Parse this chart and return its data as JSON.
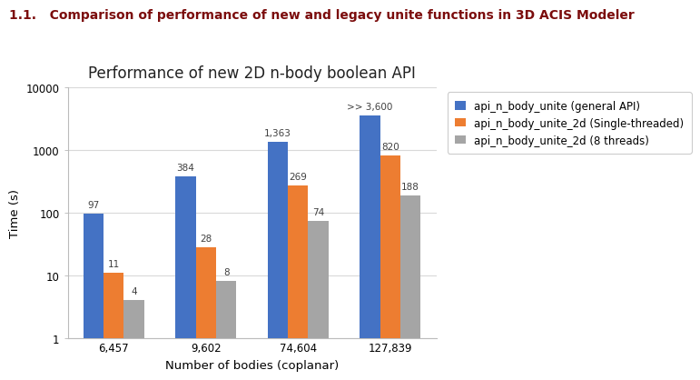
{
  "title": "Performance of new 2D n-body boolean API",
  "header": "1.1.   Comparison of performance of new and legacy unite functions in 3D ACIS Modeler",
  "xlabel": "Number of bodies (coplanar)",
  "ylabel": "Time (s)",
  "categories": [
    "6,457",
    "9,602",
    "74,604",
    "127,839"
  ],
  "series": [
    {
      "label": "api_n_body_unite (general API)",
      "color": "#4472C4",
      "values": [
        97,
        384,
        1363,
        3600
      ],
      "annotations": [
        "97",
        "384",
        "1,363",
        ">> 3,600"
      ]
    },
    {
      "label": "api_n_body_unite_2d (Single-threaded)",
      "color": "#ED7D31",
      "values": [
        11,
        28,
        269,
        820
      ],
      "annotations": [
        "11",
        "28",
        "269",
        "820"
      ]
    },
    {
      "label": "api_n_body_unite_2d (8 threads)",
      "color": "#A5A5A5",
      "values": [
        4,
        8,
        74,
        188
      ],
      "annotations": [
        "4",
        "8",
        "74",
        "188"
      ]
    }
  ],
  "ylim_log": [
    1,
    10000
  ],
  "yticks": [
    1,
    10,
    100,
    1000,
    10000
  ],
  "ytick_labels": [
    "1",
    "10",
    "100",
    "1000",
    "10000"
  ],
  "background_color": "#FFFFFF",
  "plot_bg_color": "#FFFFFF",
  "grid_color": "#D9D9D9",
  "bar_width": 0.22,
  "header_color": "#7B0C0C",
  "title_fontsize": 12,
  "header_fontsize": 10,
  "axis_label_fontsize": 9.5,
  "tick_fontsize": 8.5,
  "legend_fontsize": 8.5,
  "annotation_fontsize": 7.5
}
